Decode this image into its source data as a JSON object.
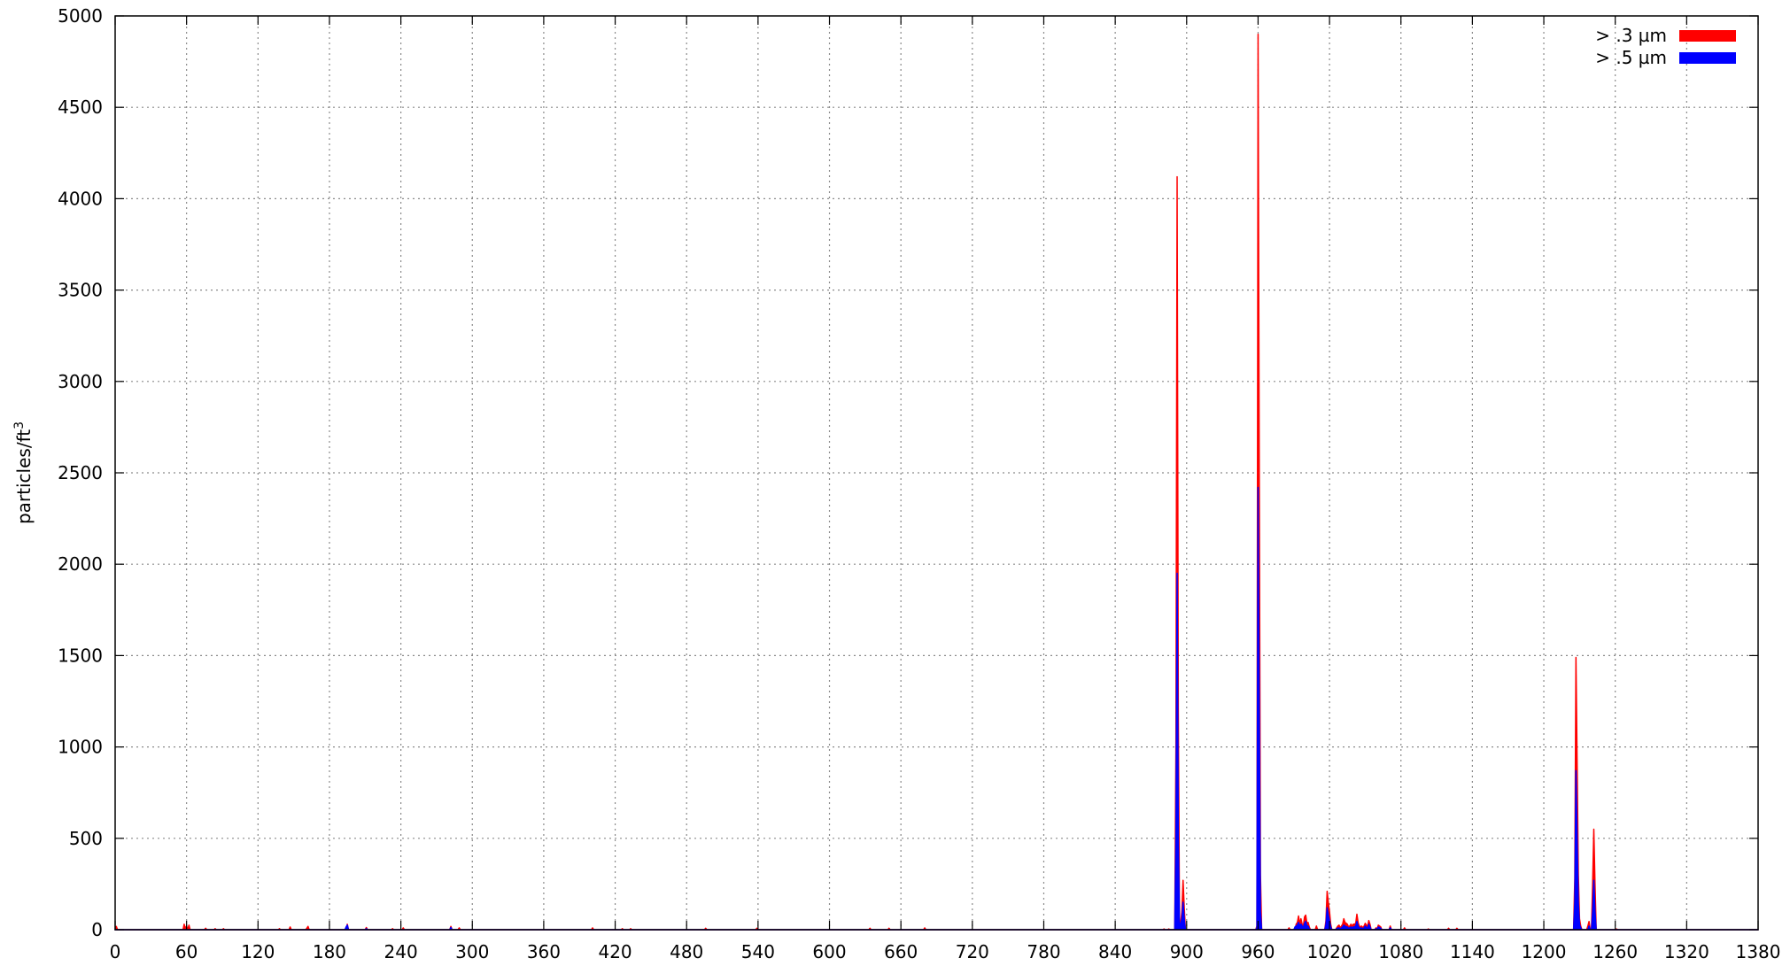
{
  "chart_data": {
    "type": "area",
    "title": "",
    "xlabel": "",
    "ylabel": "particles/ft",
    "ylabel_superscript": "3",
    "xlim": [
      0,
      1380
    ],
    "ylim": [
      0,
      5000
    ],
    "xticks": [
      0,
      60,
      120,
      180,
      240,
      300,
      360,
      420,
      480,
      540,
      600,
      660,
      720,
      780,
      840,
      900,
      960,
      1020,
      1080,
      1140,
      1200,
      1260,
      1320,
      1380
    ],
    "yticks": [
      0,
      500,
      1000,
      1500,
      2000,
      2500,
      3000,
      3500,
      4000,
      4500,
      5000
    ],
    "grid": true,
    "legend_position": "top-right",
    "series": [
      {
        "name": "> .3 µm",
        "color": "#ff0000",
        "points": [
          [
            0,
            0
          ],
          [
            1,
            18
          ],
          [
            2,
            0
          ],
          [
            57,
            0
          ],
          [
            58,
            30
          ],
          [
            59,
            5
          ],
          [
            60,
            20
          ],
          [
            61,
            0
          ],
          [
            62,
            25
          ],
          [
            63,
            0
          ],
          [
            75,
            0
          ],
          [
            76,
            8
          ],
          [
            77,
            0
          ],
          [
            83,
            0
          ],
          [
            84,
            6
          ],
          [
            85,
            0
          ],
          [
            90,
            0
          ],
          [
            91,
            6
          ],
          [
            92,
            0
          ],
          [
            137,
            0
          ],
          [
            138,
            6
          ],
          [
            139,
            0
          ],
          [
            146,
            0
          ],
          [
            147,
            15
          ],
          [
            148,
            0
          ],
          [
            160,
            0
          ],
          [
            161,
            8
          ],
          [
            162,
            18
          ],
          [
            163,
            0
          ],
          [
            194,
            0
          ],
          [
            195,
            30
          ],
          [
            196,
            0
          ],
          [
            210,
            0
          ],
          [
            211,
            12
          ],
          [
            212,
            0
          ],
          [
            232,
            0
          ],
          [
            233,
            6
          ],
          [
            234,
            0
          ],
          [
            241,
            0
          ],
          [
            242,
            10
          ],
          [
            243,
            0
          ],
          [
            281,
            0
          ],
          [
            282,
            18
          ],
          [
            283,
            0
          ],
          [
            288,
            0
          ],
          [
            289,
            10
          ],
          [
            290,
            0
          ],
          [
            400,
            0
          ],
          [
            401,
            10
          ],
          [
            402,
            0
          ],
          [
            425,
            0
          ],
          [
            426,
            6
          ],
          [
            427,
            0
          ],
          [
            432,
            0
          ],
          [
            433,
            6
          ],
          [
            434,
            0
          ],
          [
            495,
            0
          ],
          [
            496,
            8
          ],
          [
            497,
            0
          ],
          [
            538,
            0
          ],
          [
            539,
            8
          ],
          [
            540,
            0
          ],
          [
            633,
            0
          ],
          [
            634,
            8
          ],
          [
            635,
            0
          ],
          [
            649,
            0
          ],
          [
            650,
            8
          ],
          [
            651,
            0
          ],
          [
            679,
            0
          ],
          [
            680,
            10
          ],
          [
            681,
            0
          ],
          [
            880,
            0
          ],
          [
            881,
            4
          ],
          [
            882,
            0
          ],
          [
            884,
            0
          ],
          [
            885,
            4
          ],
          [
            886,
            0
          ],
          [
            890,
            0
          ],
          [
            891,
            1000
          ],
          [
            892,
            4120
          ],
          [
            893,
            1200
          ],
          [
            894,
            50
          ],
          [
            895,
            40
          ],
          [
            896,
            100
          ],
          [
            897,
            270
          ],
          [
            898,
            120
          ],
          [
            899,
            0
          ],
          [
            958,
            0
          ],
          [
            959,
            20
          ],
          [
            960,
            4900
          ],
          [
            961,
            2500
          ],
          [
            962,
            300
          ],
          [
            963,
            0
          ],
          [
            985,
            0
          ],
          [
            986,
            10
          ],
          [
            987,
            0
          ],
          [
            991,
            0
          ],
          [
            992,
            30
          ],
          [
            993,
            40
          ],
          [
            994,
            75
          ],
          [
            995,
            30
          ],
          [
            996,
            60
          ],
          [
            997,
            30
          ],
          [
            998,
            20
          ],
          [
            999,
            70
          ],
          [
            1000,
            80
          ],
          [
            1001,
            35
          ],
          [
            1002,
            40
          ],
          [
            1003,
            15
          ],
          [
            1004,
            0
          ],
          [
            1008,
            0
          ],
          [
            1009,
            20
          ],
          [
            1010,
            0
          ],
          [
            1016,
            0
          ],
          [
            1017,
            50
          ],
          [
            1018,
            210
          ],
          [
            1019,
            150
          ],
          [
            1020,
            100
          ],
          [
            1021,
            30
          ],
          [
            1022,
            0
          ],
          [
            1025,
            0
          ],
          [
            1026,
            10
          ],
          [
            1027,
            20
          ],
          [
            1028,
            25
          ],
          [
            1029,
            10
          ],
          [
            1030,
            20
          ],
          [
            1031,
            30
          ],
          [
            1032,
            60
          ],
          [
            1033,
            40
          ],
          [
            1034,
            35
          ],
          [
            1035,
            30
          ],
          [
            1036,
            15
          ],
          [
            1037,
            20
          ],
          [
            1038,
            30
          ],
          [
            1039,
            20
          ],
          [
            1040,
            30
          ],
          [
            1041,
            30
          ],
          [
            1042,
            35
          ],
          [
            1043,
            85
          ],
          [
            1044,
            40
          ],
          [
            1045,
            20
          ],
          [
            1046,
            15
          ],
          [
            1047,
            20
          ],
          [
            1048,
            10
          ],
          [
            1049,
            20
          ],
          [
            1050,
            35
          ],
          [
            1051,
            25
          ],
          [
            1052,
            20
          ],
          [
            1053,
            50
          ],
          [
            1054,
            30
          ],
          [
            1055,
            0
          ],
          [
            1058,
            0
          ],
          [
            1059,
            10
          ],
          [
            1060,
            5
          ],
          [
            1061,
            25
          ],
          [
            1062,
            20
          ],
          [
            1063,
            15
          ],
          [
            1064,
            0
          ],
          [
            1070,
            0
          ],
          [
            1071,
            20
          ],
          [
            1072,
            0
          ],
          [
            1082,
            0
          ],
          [
            1083,
            10
          ],
          [
            1084,
            0
          ],
          [
            1102,
            0
          ],
          [
            1103,
            4
          ],
          [
            1104,
            0
          ],
          [
            1119,
            0
          ],
          [
            1120,
            8
          ],
          [
            1121,
            0
          ],
          [
            1126,
            0
          ],
          [
            1127,
            8
          ],
          [
            1128,
            0
          ],
          [
            1225,
            0
          ],
          [
            1226,
            280
          ],
          [
            1227,
            1490
          ],
          [
            1228,
            900
          ],
          [
            1229,
            300
          ],
          [
            1230,
            60
          ],
          [
            1231,
            20
          ],
          [
            1232,
            0
          ],
          [
            1236,
            0
          ],
          [
            1237,
            20
          ],
          [
            1238,
            45
          ],
          [
            1239,
            0
          ],
          [
            1240,
            0
          ],
          [
            1241,
            250
          ],
          [
            1242,
            550
          ],
          [
            1243,
            250
          ],
          [
            1244,
            0
          ],
          [
            1260,
            0
          ],
          [
            1261,
            4
          ],
          [
            1262,
            0
          ],
          [
            1290,
            0
          ],
          [
            1380,
            0
          ]
        ]
      },
      {
        "name": "> .5 µm",
        "color": "#0000ff",
        "points": [
          [
            0,
            0
          ],
          [
            193,
            0
          ],
          [
            194,
            15
          ],
          [
            195,
            25
          ],
          [
            196,
            0
          ],
          [
            210,
            0
          ],
          [
            211,
            6
          ],
          [
            212,
            0
          ],
          [
            281,
            0
          ],
          [
            282,
            12
          ],
          [
            283,
            0
          ],
          [
            890,
            0
          ],
          [
            891,
            500
          ],
          [
            892,
            1950
          ],
          [
            893,
            500
          ],
          [
            894,
            20
          ],
          [
            895,
            30
          ],
          [
            896,
            60
          ],
          [
            897,
            150
          ],
          [
            898,
            60
          ],
          [
            899,
            0
          ],
          [
            958,
            0
          ],
          [
            959,
            10
          ],
          [
            960,
            2420
          ],
          [
            961,
            1200
          ],
          [
            962,
            100
          ],
          [
            963,
            0
          ],
          [
            990,
            0
          ],
          [
            991,
            15
          ],
          [
            992,
            20
          ],
          [
            993,
            25
          ],
          [
            994,
            40
          ],
          [
            995,
            20
          ],
          [
            996,
            30
          ],
          [
            997,
            20
          ],
          [
            998,
            10
          ],
          [
            999,
            35
          ],
          [
            1000,
            45
          ],
          [
            1001,
            20
          ],
          [
            1002,
            20
          ],
          [
            1003,
            5
          ],
          [
            1004,
            0
          ],
          [
            1016,
            0
          ],
          [
            1017,
            30
          ],
          [
            1018,
            120
          ],
          [
            1019,
            80
          ],
          [
            1020,
            50
          ],
          [
            1021,
            15
          ],
          [
            1022,
            0
          ],
          [
            1025,
            0
          ],
          [
            1026,
            5
          ],
          [
            1027,
            10
          ],
          [
            1028,
            10
          ],
          [
            1029,
            5
          ],
          [
            1030,
            10
          ],
          [
            1031,
            15
          ],
          [
            1032,
            25
          ],
          [
            1033,
            20
          ],
          [
            1034,
            15
          ],
          [
            1035,
            15
          ],
          [
            1036,
            8
          ],
          [
            1037,
            10
          ],
          [
            1038,
            15
          ],
          [
            1039,
            10
          ],
          [
            1040,
            15
          ],
          [
            1041,
            15
          ],
          [
            1042,
            20
          ],
          [
            1043,
            45
          ],
          [
            1044,
            20
          ],
          [
            1045,
            10
          ],
          [
            1046,
            8
          ],
          [
            1047,
            10
          ],
          [
            1048,
            5
          ],
          [
            1049,
            10
          ],
          [
            1050,
            20
          ],
          [
            1051,
            12
          ],
          [
            1052,
            10
          ],
          [
            1053,
            30
          ],
          [
            1054,
            15
          ],
          [
            1055,
            0
          ],
          [
            1058,
            0
          ],
          [
            1059,
            5
          ],
          [
            1060,
            3
          ],
          [
            1061,
            15
          ],
          [
            1062,
            12
          ],
          [
            1063,
            8
          ],
          [
            1064,
            0
          ],
          [
            1070,
            0
          ],
          [
            1071,
            10
          ],
          [
            1072,
            0
          ],
          [
            1225,
            0
          ],
          [
            1226,
            150
          ],
          [
            1227,
            870
          ],
          [
            1228,
            500
          ],
          [
            1229,
            150
          ],
          [
            1230,
            30
          ],
          [
            1231,
            10
          ],
          [
            1232,
            0
          ],
          [
            1237,
            0
          ],
          [
            1238,
            20
          ],
          [
            1239,
            0
          ],
          [
            1240,
            0
          ],
          [
            1241,
            100
          ],
          [
            1242,
            270
          ],
          [
            1243,
            100
          ],
          [
            1244,
            0
          ],
          [
            1380,
            0
          ]
        ]
      }
    ]
  }
}
